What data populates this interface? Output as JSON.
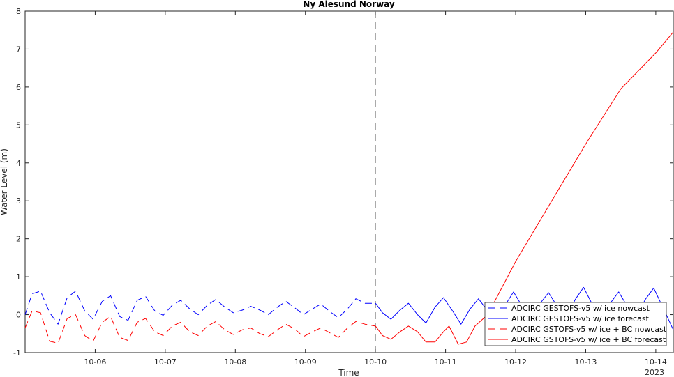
{
  "chart_data": {
    "type": "line",
    "title": "Ny Alesund Norway",
    "xlabel": "Time",
    "ylabel": "Water Level (m)",
    "x_unit": "days (Oct 2023)",
    "xlim": [
      5.0,
      14.25
    ],
    "ylim": [
      -1,
      8
    ],
    "yticks": [
      -1,
      0,
      1,
      2,
      3,
      4,
      5,
      6,
      7,
      8
    ],
    "xticks": [
      {
        "value": 6,
        "label": "10-06"
      },
      {
        "value": 7,
        "label": "10-07"
      },
      {
        "value": 8,
        "label": "10-08"
      },
      {
        "value": 9,
        "label": "10-09"
      },
      {
        "value": 10,
        "label": "10-10"
      },
      {
        "value": 11,
        "label": "10-11"
      },
      {
        "value": 12,
        "label": "10-12"
      },
      {
        "value": 13,
        "label": "10-13"
      },
      {
        "value": 14,
        "label": "10-14"
      }
    ],
    "x_secondary_label": "2023",
    "grid": false,
    "legend_position": "bottom-right",
    "nowcast_forecast_divider": 10,
    "series": [
      {
        "name": "ADCIRC GESTOFS-v5 w/ ice nowcast",
        "color": "#0000ff",
        "style": "dashed",
        "x": [
          5.0,
          5.1,
          5.22,
          5.35,
          5.47,
          5.6,
          5.72,
          5.85,
          5.97,
          6.1,
          6.22,
          6.35,
          6.47,
          6.6,
          6.72,
          6.85,
          6.97,
          7.1,
          7.22,
          7.35,
          7.47,
          7.6,
          7.72,
          7.85,
          7.97,
          8.1,
          8.22,
          8.35,
          8.47,
          8.6,
          8.72,
          8.85,
          8.97,
          9.1,
          9.22,
          9.35,
          9.47,
          9.6,
          9.72,
          9.85,
          10.0
        ],
        "y": [
          0.0,
          0.55,
          0.62,
          0.05,
          -0.25,
          0.45,
          0.62,
          0.1,
          -0.12,
          0.35,
          0.5,
          -0.05,
          -0.15,
          0.38,
          0.48,
          0.1,
          -0.02,
          0.25,
          0.38,
          0.15,
          0.0,
          0.25,
          0.4,
          0.2,
          0.05,
          0.12,
          0.22,
          0.12,
          0.0,
          0.2,
          0.35,
          0.18,
          0.0,
          0.15,
          0.28,
          0.08,
          -0.08,
          0.15,
          0.42,
          0.3,
          0.3
        ]
      },
      {
        "name": "ADCIRC GESTOFS-v5 w/ ice forecast",
        "color": "#0000ff",
        "style": "solid",
        "x": [
          10.0,
          10.1,
          10.22,
          10.35,
          10.47,
          10.6,
          10.72,
          10.85,
          10.97,
          11.1,
          11.22,
          11.35,
          11.47,
          11.6,
          11.72,
          11.85,
          11.97,
          12.1,
          12.22,
          12.35,
          12.47,
          12.6,
          12.72,
          12.85,
          12.97,
          13.1,
          13.22,
          13.35,
          13.47,
          13.6,
          13.72,
          13.85,
          13.97,
          14.1,
          14.25
        ],
        "y": [
          0.3,
          0.05,
          -0.12,
          0.12,
          0.3,
          0.0,
          -0.22,
          0.2,
          0.45,
          0.1,
          -0.25,
          0.15,
          0.42,
          0.1,
          -0.2,
          0.25,
          0.6,
          0.2,
          -0.15,
          0.3,
          0.58,
          0.2,
          -0.1,
          0.4,
          0.72,
          0.25,
          -0.05,
          0.3,
          0.6,
          0.2,
          -0.05,
          0.4,
          0.7,
          0.2,
          -0.4
        ]
      },
      {
        "name": "ADCIRC GSTOFS-v5 w/ ice + BC nowcast",
        "color": "#ff0000",
        "style": "dashed",
        "x": [
          5.0,
          5.1,
          5.22,
          5.35,
          5.47,
          5.6,
          5.72,
          5.85,
          5.97,
          6.1,
          6.22,
          6.35,
          6.47,
          6.6,
          6.72,
          6.85,
          6.97,
          7.1,
          7.22,
          7.35,
          7.47,
          7.6,
          7.72,
          7.85,
          7.97,
          8.1,
          8.22,
          8.35,
          8.47,
          8.6,
          8.72,
          8.85,
          8.97,
          9.1,
          9.22,
          9.35,
          9.47,
          9.6,
          9.72,
          9.85,
          10.0
        ],
        "y": [
          -0.35,
          0.1,
          0.05,
          -0.7,
          -0.75,
          -0.1,
          0.0,
          -0.55,
          -0.7,
          -0.2,
          -0.05,
          -0.6,
          -0.68,
          -0.2,
          -0.1,
          -0.45,
          -0.55,
          -0.3,
          -0.2,
          -0.45,
          -0.55,
          -0.3,
          -0.18,
          -0.4,
          -0.52,
          -0.4,
          -0.35,
          -0.5,
          -0.58,
          -0.4,
          -0.25,
          -0.38,
          -0.58,
          -0.45,
          -0.35,
          -0.48,
          -0.6,
          -0.35,
          -0.18,
          -0.25,
          -0.3
        ]
      },
      {
        "name": "ADCIRC GSTOFS-v5 w/ ice + BC forecast",
        "color": "#ff0000",
        "style": "solid",
        "x": [
          10.0,
          10.1,
          10.22,
          10.35,
          10.47,
          10.6,
          10.72,
          10.85,
          10.97,
          11.05,
          11.18,
          11.3,
          11.42,
          11.6,
          12.0,
          12.5,
          13.0,
          13.5,
          14.0,
          14.25
        ],
        "y": [
          -0.3,
          -0.55,
          -0.65,
          -0.45,
          -0.3,
          -0.45,
          -0.72,
          -0.72,
          -0.45,
          -0.3,
          -0.78,
          -0.72,
          -0.3,
          0.0,
          1.4,
          2.95,
          4.5,
          5.95,
          6.9,
          7.45
        ]
      }
    ]
  }
}
